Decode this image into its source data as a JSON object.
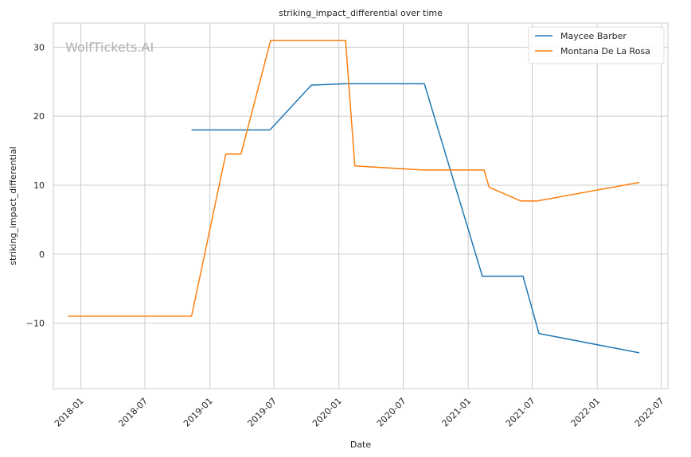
{
  "chart_data": {
    "type": "line",
    "title": "striking_impact_differential over time",
    "xlabel": "Date",
    "ylabel": "striking_impact_differential",
    "watermark": "WolfTickets.AI",
    "x_ticks": [
      "2018-01",
      "2018-07",
      "2019-01",
      "2019-07",
      "2020-01",
      "2020-07",
      "2021-01",
      "2021-07",
      "2022-01",
      "2022-07"
    ],
    "y_ticks": [
      "30",
      "20",
      "10",
      "0",
      "−10"
    ],
    "xlim": [
      "2017-10-15",
      "2022-07-20"
    ],
    "ylim": [
      -19.5,
      33.5
    ],
    "grid": true,
    "legend_position": "top-right",
    "series": [
      {
        "name": "Maycee Barber",
        "color": "#1f77b4",
        "points": [
          {
            "x": "2018-11-10",
            "y": 18.0
          },
          {
            "x": "2019-06-20",
            "y": 18.0
          },
          {
            "x": "2019-10-15",
            "y": 24.5
          },
          {
            "x": "2020-01-15",
            "y": 24.7
          },
          {
            "x": "2020-08-30",
            "y": 24.7
          },
          {
            "x": "2021-02-10",
            "y": -3.2
          },
          {
            "x": "2021-06-05",
            "y": -3.2
          },
          {
            "x": "2021-07-20",
            "y": -11.5
          },
          {
            "x": "2022-04-30",
            "y": -14.3
          }
        ]
      },
      {
        "name": "Montana De La Rosa",
        "color": "#ff7f0e",
        "points": [
          {
            "x": "2017-11-25",
            "y": -9.0
          },
          {
            "x": "2018-11-10",
            "y": -9.0
          },
          {
            "x": "2019-02-15",
            "y": 14.5
          },
          {
            "x": "2019-03-30",
            "y": 14.5
          },
          {
            "x": "2019-06-22",
            "y": 31.0
          },
          {
            "x": "2020-01-20",
            "y": 31.0
          },
          {
            "x": "2020-02-15",
            "y": 12.8
          },
          {
            "x": "2020-08-25",
            "y": 12.2
          },
          {
            "x": "2021-02-15",
            "y": 12.2
          },
          {
            "x": "2021-03-01",
            "y": 9.7
          },
          {
            "x": "2021-05-30",
            "y": 7.7
          },
          {
            "x": "2021-07-15",
            "y": 7.7
          },
          {
            "x": "2022-04-30",
            "y": 10.4
          }
        ]
      }
    ]
  }
}
